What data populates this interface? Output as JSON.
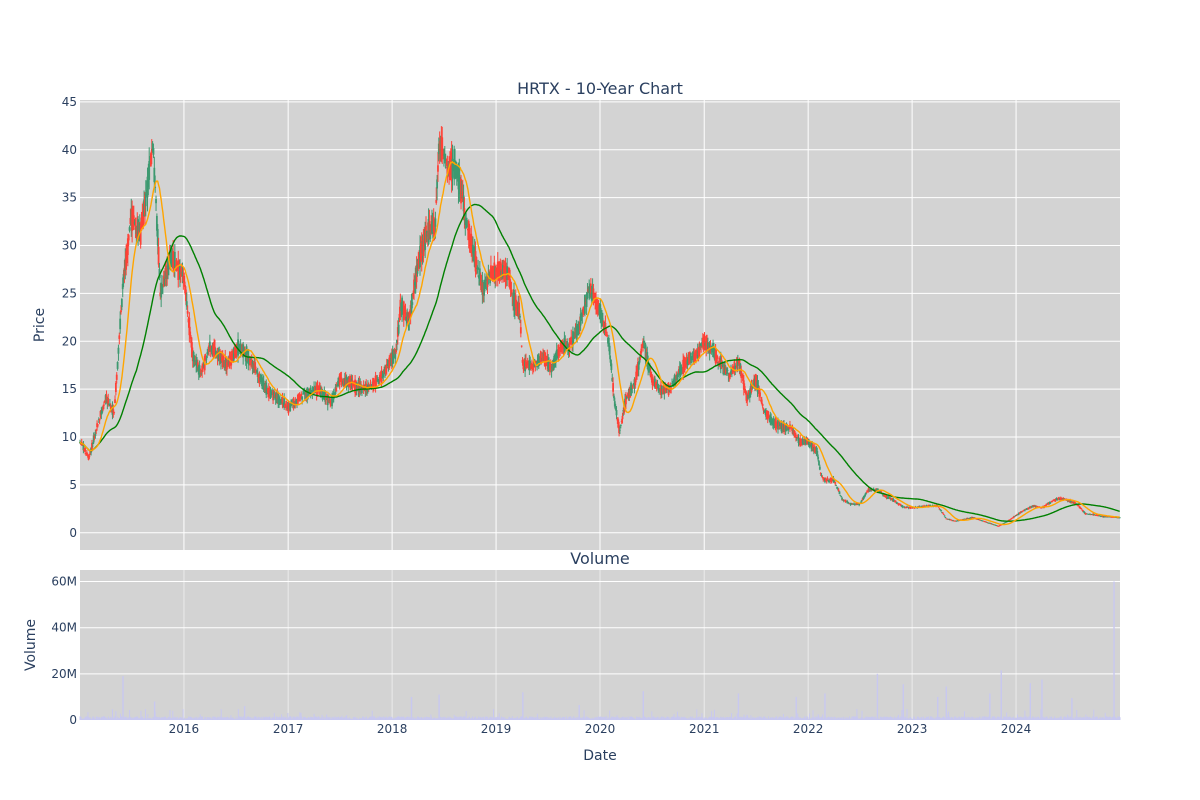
{
  "chart_data": [
    {
      "type": "candlestick",
      "title": "HRTX - 10-Year Chart",
      "ylabel": "Price",
      "xlim": [
        "2015-01-01",
        "2024-12-31"
      ],
      "ylim": [
        -1.8,
        45.2
      ],
      "yticks": [
        0,
        5,
        10,
        15,
        20,
        25,
        30,
        35,
        40,
        45
      ],
      "grid": true,
      "legend": "none",
      "colors": {
        "increasing": "#3d9970",
        "decreasing": "#ff4136",
        "ma_short": "#ffa500",
        "ma_long": "#008000",
        "plot_bg": "#d3d3d3"
      },
      "price_keypoints": [
        [
          "2015-01-02",
          9.5
        ],
        [
          "2015-02-01",
          7.8
        ],
        [
          "2015-03-01",
          11.0
        ],
        [
          "2015-04-01",
          14.0
        ],
        [
          "2015-05-01",
          12.5
        ],
        [
          "2015-06-01",
          26.0
        ],
        [
          "2015-07-01",
          33.0
        ],
        [
          "2015-08-01",
          31.0
        ],
        [
          "2015-09-15",
          40.5
        ],
        [
          "2015-10-10",
          25.0
        ],
        [
          "2015-11-15",
          29.0
        ],
        [
          "2016-01-01",
          26.5
        ],
        [
          "2016-02-01",
          18.5
        ],
        [
          "2016-03-01",
          16.5
        ],
        [
          "2016-04-01",
          19.5
        ],
        [
          "2016-06-01",
          17.5
        ],
        [
          "2016-07-15",
          19.5
        ],
        [
          "2016-09-01",
          17.5
        ],
        [
          "2016-10-15",
          15.0
        ],
        [
          "2016-12-01",
          14.0
        ],
        [
          "2017-01-01",
          13.0
        ],
        [
          "2017-03-01",
          14.5
        ],
        [
          "2017-04-15",
          15.0
        ],
        [
          "2017-06-01",
          13.5
        ],
        [
          "2017-07-01",
          16.0
        ],
        [
          "2017-08-15",
          15.5
        ],
        [
          "2017-10-01",
          15.0
        ],
        [
          "2017-12-01",
          16.5
        ],
        [
          "2018-01-15",
          19.0
        ],
        [
          "2018-02-01",
          24.0
        ],
        [
          "2018-03-01",
          22.0
        ],
        [
          "2018-04-01",
          28.0
        ],
        [
          "2018-05-01",
          31.0
        ],
        [
          "2018-06-01",
          32.0
        ],
        [
          "2018-06-15",
          41.0
        ],
        [
          "2018-07-15",
          38.0
        ],
        [
          "2018-08-15",
          38.5
        ],
        [
          "2018-09-15",
          33.0
        ],
        [
          "2018-10-15",
          29.0
        ],
        [
          "2018-11-15",
          25.5
        ],
        [
          "2018-12-15",
          27.0
        ],
        [
          "2019-01-15",
          27.5
        ],
        [
          "2019-02-15",
          27.0
        ],
        [
          "2019-03-01",
          24.5
        ],
        [
          "2019-03-25",
          23.0
        ],
        [
          "2019-04-05",
          17.5
        ],
        [
          "2019-05-15",
          17.5
        ],
        [
          "2019-06-15",
          18.5
        ],
        [
          "2019-07-15",
          17.0
        ],
        [
          "2019-08-15",
          19.5
        ],
        [
          "2019-09-15",
          19.5
        ],
        [
          "2019-10-20",
          21.5
        ],
        [
          "2019-11-25",
          25.5
        ],
        [
          "2020-01-01",
          23.0
        ],
        [
          "2020-02-01",
          20.0
        ],
        [
          "2020-02-20",
          14.0
        ],
        [
          "2020-03-10",
          10.5
        ],
        [
          "2020-04-01",
          14.0
        ],
        [
          "2020-05-01",
          15.5
        ],
        [
          "2020-06-01",
          20.0
        ],
        [
          "2020-06-15",
          18.0
        ],
        [
          "2020-07-01",
          16.0
        ],
        [
          "2020-08-01",
          15.0
        ],
        [
          "2020-09-01",
          15.0
        ],
        [
          "2020-10-01",
          16.5
        ],
        [
          "2020-11-01",
          18.0
        ],
        [
          "2020-12-01",
          18.5
        ],
        [
          "2021-01-01",
          20.0
        ],
        [
          "2021-02-01",
          19.0
        ],
        [
          "2021-03-01",
          17.5
        ],
        [
          "2021-04-01",
          16.5
        ],
        [
          "2021-05-01",
          18.0
        ],
        [
          "2021-06-01",
          14.0
        ],
        [
          "2021-07-01",
          16.0
        ],
        [
          "2021-08-01",
          12.5
        ],
        [
          "2021-09-01",
          11.5
        ],
        [
          "2021-10-01",
          11.0
        ],
        [
          "2021-11-01",
          11.0
        ],
        [
          "2021-12-01",
          9.5
        ],
        [
          "2022-01-01",
          9.5
        ],
        [
          "2022-02-01",
          8.5
        ],
        [
          "2022-02-15",
          6.0
        ],
        [
          "2022-03-01",
          5.5
        ],
        [
          "2022-04-01",
          5.5
        ],
        [
          "2022-05-01",
          3.5
        ],
        [
          "2022-06-01",
          3.0
        ],
        [
          "2022-07-01",
          3.0
        ],
        [
          "2022-08-01",
          4.5
        ],
        [
          "2022-09-01",
          4.5
        ],
        [
          "2022-10-01",
          3.8
        ],
        [
          "2022-11-01",
          3.3
        ],
        [
          "2022-12-01",
          2.7
        ],
        [
          "2023-01-01",
          2.6
        ],
        [
          "2023-03-01",
          2.8
        ],
        [
          "2023-04-01",
          2.8
        ],
        [
          "2023-05-01",
          1.5
        ],
        [
          "2023-06-01",
          1.2
        ],
        [
          "2023-07-01",
          1.4
        ],
        [
          "2023-08-01",
          1.6
        ],
        [
          "2023-09-01",
          1.3
        ],
        [
          "2023-10-01",
          1.0
        ],
        [
          "2023-11-01",
          0.7
        ],
        [
          "2023-12-01",
          1.2
        ],
        [
          "2024-01-01",
          1.8
        ],
        [
          "2024-02-01",
          2.4
        ],
        [
          "2024-03-01",
          2.8
        ],
        [
          "2024-04-01",
          2.6
        ],
        [
          "2024-05-01",
          3.2
        ],
        [
          "2024-06-01",
          3.6
        ],
        [
          "2024-07-01",
          3.4
        ],
        [
          "2024-08-01",
          3.0
        ],
        [
          "2024-09-01",
          2.0
        ],
        [
          "2024-10-01",
          1.9
        ],
        [
          "2024-11-01",
          1.7
        ],
        [
          "2024-12-31",
          1.6
        ]
      ],
      "series": [
        {
          "values_from": "price_keypoints",
          "role": "ohlc"
        },
        {
          "role": "ma_short",
          "window_days": 50
        },
        {
          "role": "ma_long",
          "window_days": 200
        }
      ]
    },
    {
      "type": "bar",
      "title": "Volume",
      "xlabel": "Date",
      "ylabel": "Volume",
      "ylim": [
        0,
        65000000
      ],
      "yticks": [
        0,
        20000000,
        40000000,
        60000000
      ],
      "ytick_labels": [
        "0",
        "20M",
        "40M",
        "60M"
      ],
      "xticks": [
        "2016-01-01",
        "2017-01-01",
        "2018-01-01",
        "2019-01-01",
        "2020-01-01",
        "2021-01-01",
        "2022-01-01",
        "2023-01-01",
        "2024-01-01"
      ],
      "xtick_labels": [
        "2016",
        "2017",
        "2018",
        "2019",
        "2020",
        "2021",
        "2022",
        "2023",
        "2024"
      ],
      "bar_color": "#c8c8f0",
      "spikes": [
        [
          "2015-06-01",
          19000000
        ],
        [
          "2015-09-20",
          8000000
        ],
        [
          "2016-08-01",
          6000000
        ],
        [
          "2018-03-10",
          10000000
        ],
        [
          "2018-06-15",
          11000000
        ],
        [
          "2019-04-05",
          12000000
        ],
        [
          "2019-10-20",
          6500000
        ],
        [
          "2020-06-01",
          12500000
        ],
        [
          "2021-05-01",
          11500000
        ],
        [
          "2021-11-20",
          10000000
        ],
        [
          "2022-03-01",
          11500000
        ],
        [
          "2022-09-01",
          20000000
        ],
        [
          "2022-12-01",
          15500000
        ],
        [
          "2023-04-01",
          10000000
        ],
        [
          "2023-05-01",
          14500000
        ],
        [
          "2023-10-01",
          11500000
        ],
        [
          "2023-11-10",
          21500000
        ],
        [
          "2024-02-20",
          16000000
        ],
        [
          "2024-04-01",
          17500000
        ],
        [
          "2024-07-15",
          9500000
        ],
        [
          "2024-12-10",
          60000000
        ]
      ],
      "baseline_typical": 800000
    }
  ]
}
